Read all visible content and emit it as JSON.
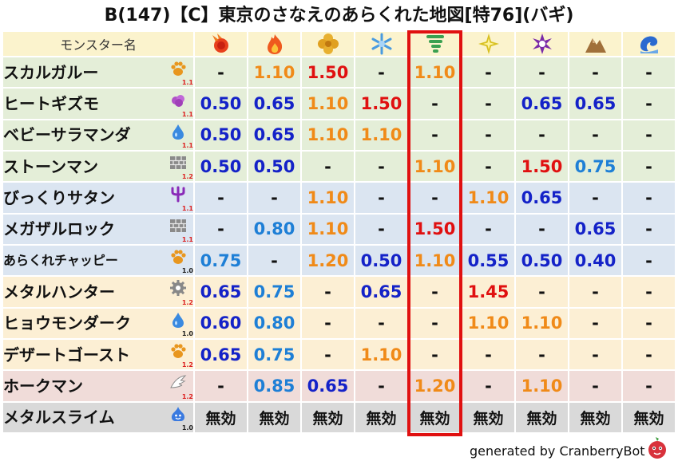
{
  "title": "B(147)【C】東京のさなえのあらくれた地図[特76](バギ)",
  "header": {
    "name_label": "モンスター名",
    "elements": [
      {
        "name": "fire-ball-icon",
        "color": "#e8401c"
      },
      {
        "name": "flame-icon",
        "color": "#ef5a1e"
      },
      {
        "name": "earth-clover-icon",
        "color": "#e0a020"
      },
      {
        "name": "ice-crystal-icon",
        "color": "#4a9be0"
      },
      {
        "name": "tornado-icon",
        "color": "#3aa050"
      },
      {
        "name": "lightning-star-icon",
        "color": "#d8c020"
      },
      {
        "name": "dark-swirl-icon",
        "color": "#7a2aa8"
      },
      {
        "name": "rock-mountain-icon",
        "color": "#a0703a"
      },
      {
        "name": "water-wave-icon",
        "color": "#2a6ad0"
      }
    ]
  },
  "rows": [
    {
      "name": "スカルガルー",
      "type_icon": "paw-icon",
      "level": "1.1",
      "level_color": "red",
      "bg": "g",
      "values": [
        [
          "-",
          "dash"
        ],
        [
          "1.10",
          "orange"
        ],
        [
          "1.50",
          "red"
        ],
        [
          "-",
          "dash"
        ],
        [
          "1.10",
          "orange"
        ],
        [
          "-",
          "dash"
        ],
        [
          "-",
          "dash"
        ],
        [
          "-",
          "dash"
        ],
        [
          "-",
          "dash"
        ]
      ]
    },
    {
      "name": "ヒートギズモ",
      "type_icon": "gas-cloud-icon",
      "level": "1.1",
      "level_color": "red",
      "bg": "g",
      "values": [
        [
          "0.50",
          "navy"
        ],
        [
          "0.65",
          "navy"
        ],
        [
          "1.10",
          "orange"
        ],
        [
          "1.50",
          "red"
        ],
        [
          "-",
          "dash"
        ],
        [
          "-",
          "dash"
        ],
        [
          "0.65",
          "navy"
        ],
        [
          "0.65",
          "navy"
        ],
        [
          "-",
          "dash"
        ]
      ]
    },
    {
      "name": "ベビーサラマンダ",
      "type_icon": "droplet-icon",
      "level": "1.1",
      "level_color": "red",
      "bg": "g",
      "values": [
        [
          "0.50",
          "navy"
        ],
        [
          "0.65",
          "navy"
        ],
        [
          "1.10",
          "orange"
        ],
        [
          "1.10",
          "orange"
        ],
        [
          "-",
          "dash"
        ],
        [
          "-",
          "dash"
        ],
        [
          "-",
          "dash"
        ],
        [
          "-",
          "dash"
        ],
        [
          "-",
          "dash"
        ]
      ]
    },
    {
      "name": "ストーンマン",
      "type_icon": "brick-icon",
      "level": "1.2",
      "level_color": "red",
      "bg": "g",
      "values": [
        [
          "0.50",
          "navy"
        ],
        [
          "0.50",
          "navy"
        ],
        [
          "-",
          "dash"
        ],
        [
          "-",
          "dash"
        ],
        [
          "1.10",
          "orange"
        ],
        [
          "-",
          "dash"
        ],
        [
          "1.50",
          "red"
        ],
        [
          "0.75",
          "lblue"
        ],
        [
          "-",
          "dash"
        ]
      ]
    },
    {
      "name": "びっくりサタン",
      "type_icon": "trident-icon",
      "level": "1.1",
      "level_color": "red",
      "bg": "b",
      "values": [
        [
          "-",
          "dash"
        ],
        [
          "-",
          "dash"
        ],
        [
          "1.10",
          "orange"
        ],
        [
          "-",
          "dash"
        ],
        [
          "-",
          "dash"
        ],
        [
          "1.10",
          "orange"
        ],
        [
          "0.65",
          "navy"
        ],
        [
          "-",
          "dash"
        ],
        [
          "-",
          "dash"
        ]
      ]
    },
    {
      "name": "メガザルロック",
      "type_icon": "brick-icon",
      "level": "1.1",
      "level_color": "red",
      "bg": "b",
      "values": [
        [
          "-",
          "dash"
        ],
        [
          "0.80",
          "lblue"
        ],
        [
          "1.10",
          "orange"
        ],
        [
          "-",
          "dash"
        ],
        [
          "1.50",
          "red"
        ],
        [
          "-",
          "dash"
        ],
        [
          "-",
          "dash"
        ],
        [
          "0.65",
          "navy"
        ],
        [
          "-",
          "dash"
        ]
      ]
    },
    {
      "name": "あらくれチャッピー",
      "type_icon": "paw-icon",
      "level": "1.0",
      "level_color": "dark",
      "bg": "b",
      "small": true,
      "values": [
        [
          "0.75",
          "lblue"
        ],
        [
          "-",
          "dash"
        ],
        [
          "1.20",
          "orange"
        ],
        [
          "0.50",
          "navy"
        ],
        [
          "1.10",
          "orange"
        ],
        [
          "0.55",
          "navy"
        ],
        [
          "0.50",
          "navy"
        ],
        [
          "0.40",
          "navy"
        ],
        [
          "-",
          "dash"
        ]
      ]
    },
    {
      "name": "メタルハンター",
      "type_icon": "gear-icon",
      "level": "1.2",
      "level_color": "red",
      "bg": "y",
      "values": [
        [
          "0.65",
          "navy"
        ],
        [
          "0.75",
          "lblue"
        ],
        [
          "-",
          "dash"
        ],
        [
          "0.65",
          "navy"
        ],
        [
          "-",
          "dash"
        ],
        [
          "1.45",
          "red"
        ],
        [
          "-",
          "dash"
        ],
        [
          "-",
          "dash"
        ],
        [
          "-",
          "dash"
        ]
      ]
    },
    {
      "name": "ヒョウモンダーク",
      "type_icon": "droplet-icon",
      "level": "1.0",
      "level_color": "dark",
      "bg": "y",
      "values": [
        [
          "0.60",
          "navy"
        ],
        [
          "0.80",
          "lblue"
        ],
        [
          "-",
          "dash"
        ],
        [
          "-",
          "dash"
        ],
        [
          "-",
          "dash"
        ],
        [
          "1.10",
          "orange"
        ],
        [
          "1.10",
          "orange"
        ],
        [
          "-",
          "dash"
        ],
        [
          "-",
          "dash"
        ]
      ]
    },
    {
      "name": "デザートゴースト",
      "type_icon": "paw-icon",
      "level": "1.2",
      "level_color": "red",
      "bg": "y",
      "values": [
        [
          "0.65",
          "navy"
        ],
        [
          "0.75",
          "lblue"
        ],
        [
          "-",
          "dash"
        ],
        [
          "1.10",
          "orange"
        ],
        [
          "-",
          "dash"
        ],
        [
          "-",
          "dash"
        ],
        [
          "-",
          "dash"
        ],
        [
          "-",
          "dash"
        ],
        [
          "-",
          "dash"
        ]
      ]
    },
    {
      "name": "ホークマン",
      "type_icon": "wing-icon",
      "level": "1.2",
      "level_color": "red",
      "bg": "p",
      "values": [
        [
          "-",
          "dash"
        ],
        [
          "0.85",
          "lblue"
        ],
        [
          "0.65",
          "navy"
        ],
        [
          "-",
          "dash"
        ],
        [
          "1.20",
          "orange"
        ],
        [
          "-",
          "dash"
        ],
        [
          "1.10",
          "orange"
        ],
        [
          "-",
          "dash"
        ],
        [
          "-",
          "dash"
        ]
      ]
    },
    {
      "name": "メタルスライム",
      "type_icon": "slime-icon",
      "level": "1.0",
      "level_color": "dark",
      "bg": "x",
      "values": [
        [
          "無効",
          "mukou"
        ],
        [
          "無効",
          "mukou"
        ],
        [
          "無効",
          "mukou"
        ],
        [
          "無効",
          "mukou"
        ],
        [
          "無効",
          "mukou"
        ],
        [
          "無効",
          "mukou"
        ],
        [
          "無効",
          "mukou"
        ],
        [
          "無効",
          "mukou"
        ],
        [
          "無効",
          "mukou"
        ]
      ]
    }
  ],
  "highlighted_element_index": 4,
  "footer": "generated by CranberryBot",
  "footer_logo": "cranberry-logo-icon"
}
